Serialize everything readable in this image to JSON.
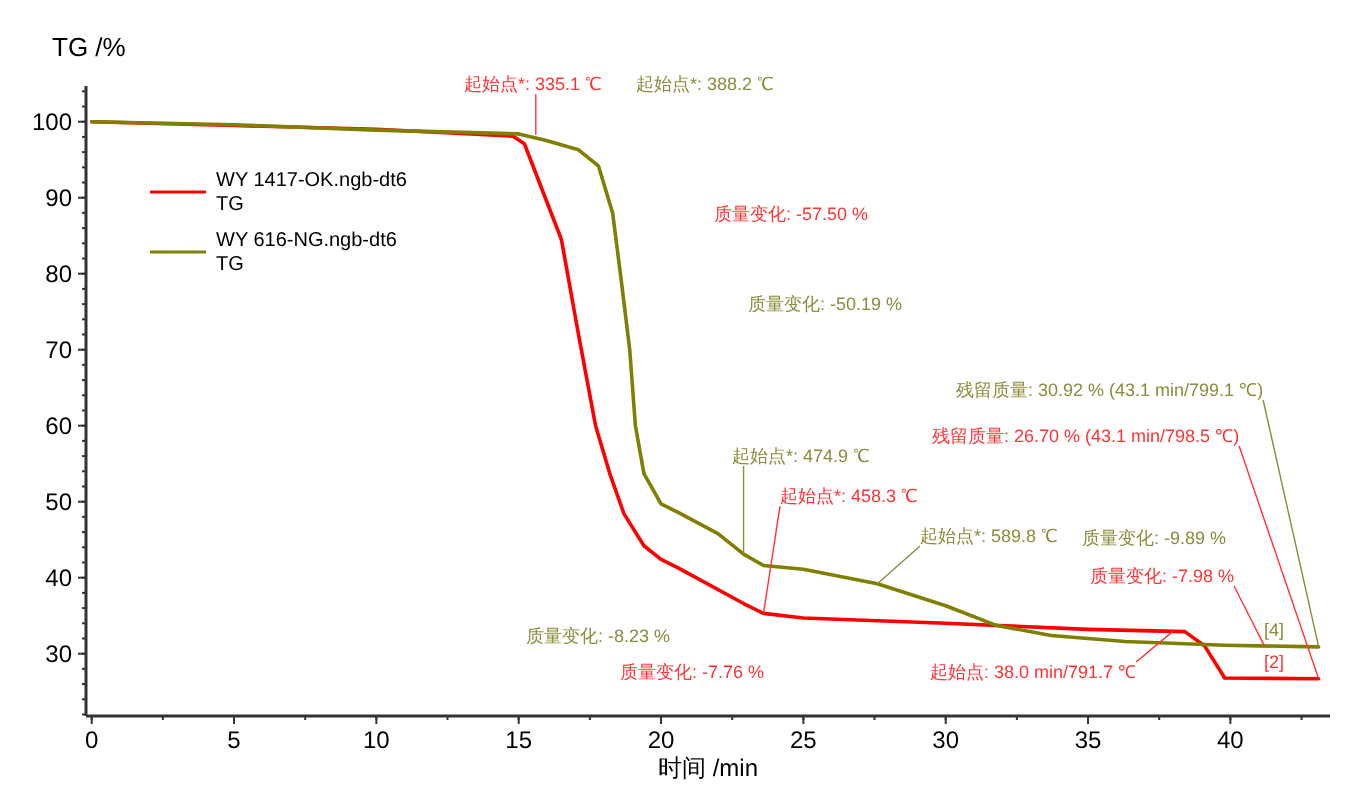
{
  "chart_data": {
    "type": "line",
    "ylabel": "TG /%",
    "xlabel": "时间 /min",
    "xlim": [
      -0.2,
      43.5
    ],
    "ylim": [
      21.8,
      104.7
    ],
    "xticks": [
      0,
      5,
      10,
      15,
      20,
      25,
      30,
      35,
      40
    ],
    "yticks": [
      30,
      40,
      50,
      60,
      70,
      80,
      90,
      100
    ],
    "grid": false,
    "legend": "top left",
    "line_style": "solid",
    "series": [
      {
        "name": "WY 1417-OK.ngb-dt6\nTG",
        "color": "#ff0000",
        "x": [
          0,
          5,
          10,
          14.8,
          15.2,
          16.5,
          17.1,
          17.7,
          18.2,
          18.7,
          19.4,
          20.0,
          20.6,
          22.9,
          23.6,
          25.0,
          30.0,
          35.0,
          38.4,
          39.1,
          39.8,
          43.1
        ],
        "values": [
          100,
          99.5,
          99.0,
          98.1,
          97.1,
          84.5,
          72,
          60,
          53.7,
          48.4,
          44.2,
          42.4,
          41.3,
          36.6,
          35.3,
          34.7,
          34.0,
          33.2,
          32.9,
          31.0,
          26.8,
          26.7
        ]
      },
      {
        "name": "WY 616-NG.ngb-dt6\nTG",
        "color": "#7f7f00",
        "x": [
          0,
          5,
          10,
          15,
          15.9,
          17.1,
          17.8,
          18.3,
          18.6,
          18.9,
          19.1,
          19.4,
          20.0,
          20.6,
          22.0,
          22.9,
          23.6,
          25.0,
          27.6,
          30.0,
          31.8,
          33.7,
          36.3,
          39.8,
          43.1
        ],
        "values": [
          100,
          99.6,
          98.9,
          98.4,
          97.6,
          96.3,
          94.2,
          88,
          79.2,
          70,
          60,
          53.7,
          49.7,
          48.6,
          45.8,
          43.1,
          41.6,
          41.1,
          39.2,
          36.3,
          33.7,
          32.4,
          31.6,
          31.1,
          30.9
        ]
      }
    ],
    "annotations": [
      {
        "text": "起始点*: 335.1 ℃",
        "x": 15.6,
        "y": 98.3
      },
      "起始点*: 388.2 ℃",
      "质量变化: -57.50 %",
      "质量变化: -50.19 %",
      {
        "text": "起始点*: 474.9 ℃",
        "x": 22.9,
        "y": 43.1
      },
      {
        "text": "起始点*: 458.3 ℃",
        "x": 23.6,
        "y": 35.3
      },
      "质量变化: -8.23 %",
      "质量变化: -7.76 %",
      {
        "text": "起始点*: 589.8 ℃",
        "x": 27.6,
        "y": 39.2
      },
      "质量变化: -9.89 %",
      {
        "text": "质量变化: -7.98 %",
        "x": 41.2,
        "y": 31
      },
      {
        "text": "残留质量: 30.92 % (43.1 min/799.1 ℃)",
        "x": 43.1,
        "y": 30.92
      },
      {
        "text": "残留质量: 26.70 % (43.1 min/798.5 ℃)",
        "x": 43.1,
        "y": 26.7
      },
      {
        "text": "起始点: 38.0 min/791.7 ℃",
        "x": 38.0,
        "y": 33.0
      },
      "[4]",
      "[2]"
    ]
  }
}
